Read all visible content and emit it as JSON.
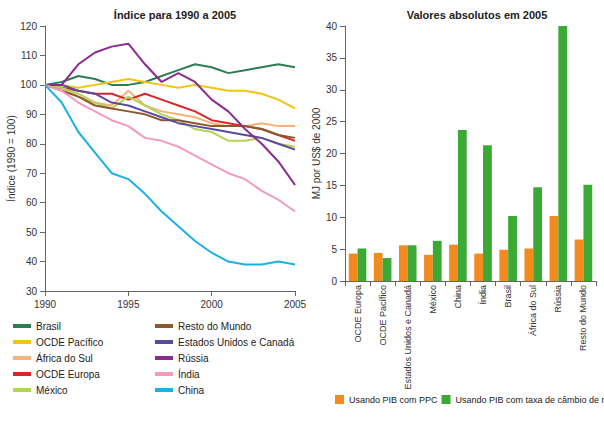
{
  "chart_data": [
    {
      "type": "line",
      "title": "Índice para 1990 a 2005",
      "y_label": "Índice (1990 = 100)",
      "x": [
        1990,
        1991,
        1992,
        1993,
        1994,
        1995,
        1996,
        1997,
        1998,
        1999,
        2000,
        2001,
        2002,
        2003,
        2004,
        2005
      ],
      "xlim": [
        1990,
        2005
      ],
      "xticks": [
        1990,
        1995,
        2000,
        2005
      ],
      "ylim": [
        30,
        120
      ],
      "yticks": [
        30,
        40,
        50,
        60,
        70,
        80,
        90,
        100,
        110,
        120
      ],
      "grid": false,
      "legend": "bottom",
      "series": [
        {
          "name": "Brasil",
          "color": "#2e7d52",
          "values": [
            100,
            101,
            103,
            102,
            100,
            100,
            101,
            103,
            105,
            107,
            106,
            104,
            105,
            106,
            107,
            106
          ]
        },
        {
          "name": "OCDE Pacífico",
          "color": "#f2c418",
          "values": [
            100,
            100,
            99,
            100,
            101,
            102,
            101,
            100,
            99,
            100,
            99,
            98,
            98,
            97,
            95,
            92
          ]
        },
        {
          "name": "África do Sul",
          "color": "#f6b27a",
          "values": [
            100,
            99,
            96,
            94,
            93,
            98,
            93,
            91,
            90,
            89,
            87,
            86,
            86,
            87,
            86,
            86
          ]
        },
        {
          "name": "OCDE Europa",
          "color": "#d9262b",
          "values": [
            100,
            99,
            98,
            97,
            97,
            95,
            97,
            95,
            93,
            91,
            88,
            87,
            86,
            85,
            83,
            81
          ]
        },
        {
          "name": "México",
          "color": "#b5d35a",
          "values": [
            100,
            99,
            97,
            94,
            92,
            96,
            93,
            90,
            88,
            85,
            84,
            81,
            81,
            82,
            80,
            79
          ]
        },
        {
          "name": "Resto do Mundo",
          "color": "#8b5a2b",
          "values": [
            100,
            98,
            96,
            93,
            92,
            91,
            90,
            88,
            88,
            87,
            86,
            86,
            86,
            85,
            83,
            82
          ]
        },
        {
          "name": "Estados Unidos e Canadá",
          "color": "#5a4aa0",
          "values": [
            100,
            100,
            98,
            97,
            94,
            93,
            91,
            89,
            87,
            86,
            85,
            84,
            83,
            82,
            80,
            78
          ]
        },
        {
          "name": "Rússia",
          "color": "#8b2a8f",
          "values": [
            100,
            100,
            107,
            111,
            113,
            114,
            107,
            101,
            104,
            101,
            95,
            91,
            85,
            80,
            74,
            66
          ]
        },
        {
          "name": "Índia",
          "color": "#f49ac1",
          "values": [
            100,
            98,
            94,
            91,
            88,
            86,
            82,
            81,
            79,
            76,
            73,
            70,
            68,
            64,
            61,
            57
          ]
        },
        {
          "name": "China",
          "color": "#1ab0e8",
          "values": [
            100,
            94,
            84,
            77,
            70,
            68,
            63,
            57,
            52,
            47,
            43,
            40,
            39,
            39,
            40,
            39
          ]
        }
      ]
    },
    {
      "type": "bar",
      "title": "Valores absolutos em 2005",
      "y_label": "MJ por US$ de 2000",
      "categories": [
        "OCDE Europa",
        "OCDE Pacífico",
        "Estados Unidos e Canadá",
        "México",
        "China",
        "Índia",
        "Brasil",
        "África do Sul",
        "Rússia",
        "Resto do Mundo"
      ],
      "ylim": [
        0,
        40
      ],
      "yticks": [
        0,
        5,
        10,
        15,
        20,
        25,
        30,
        35,
        40
      ],
      "grid": false,
      "legend": "bottom",
      "series": [
        {
          "name": "Usando PIB com PPC",
          "color": "#f28a1e",
          "values": [
            4.3,
            4.4,
            5.6,
            4.1,
            5.7,
            4.3,
            4.9,
            5.1,
            10.2,
            6.5
          ]
        },
        {
          "name": "Usando PIB com taxa de câmbio de mercado",
          "color": "#3aaa35",
          "values": [
            5.1,
            3.6,
            5.6,
            6.3,
            23.7,
            21.3,
            10.2,
            14.7,
            40,
            15.1
          ]
        }
      ]
    }
  ]
}
